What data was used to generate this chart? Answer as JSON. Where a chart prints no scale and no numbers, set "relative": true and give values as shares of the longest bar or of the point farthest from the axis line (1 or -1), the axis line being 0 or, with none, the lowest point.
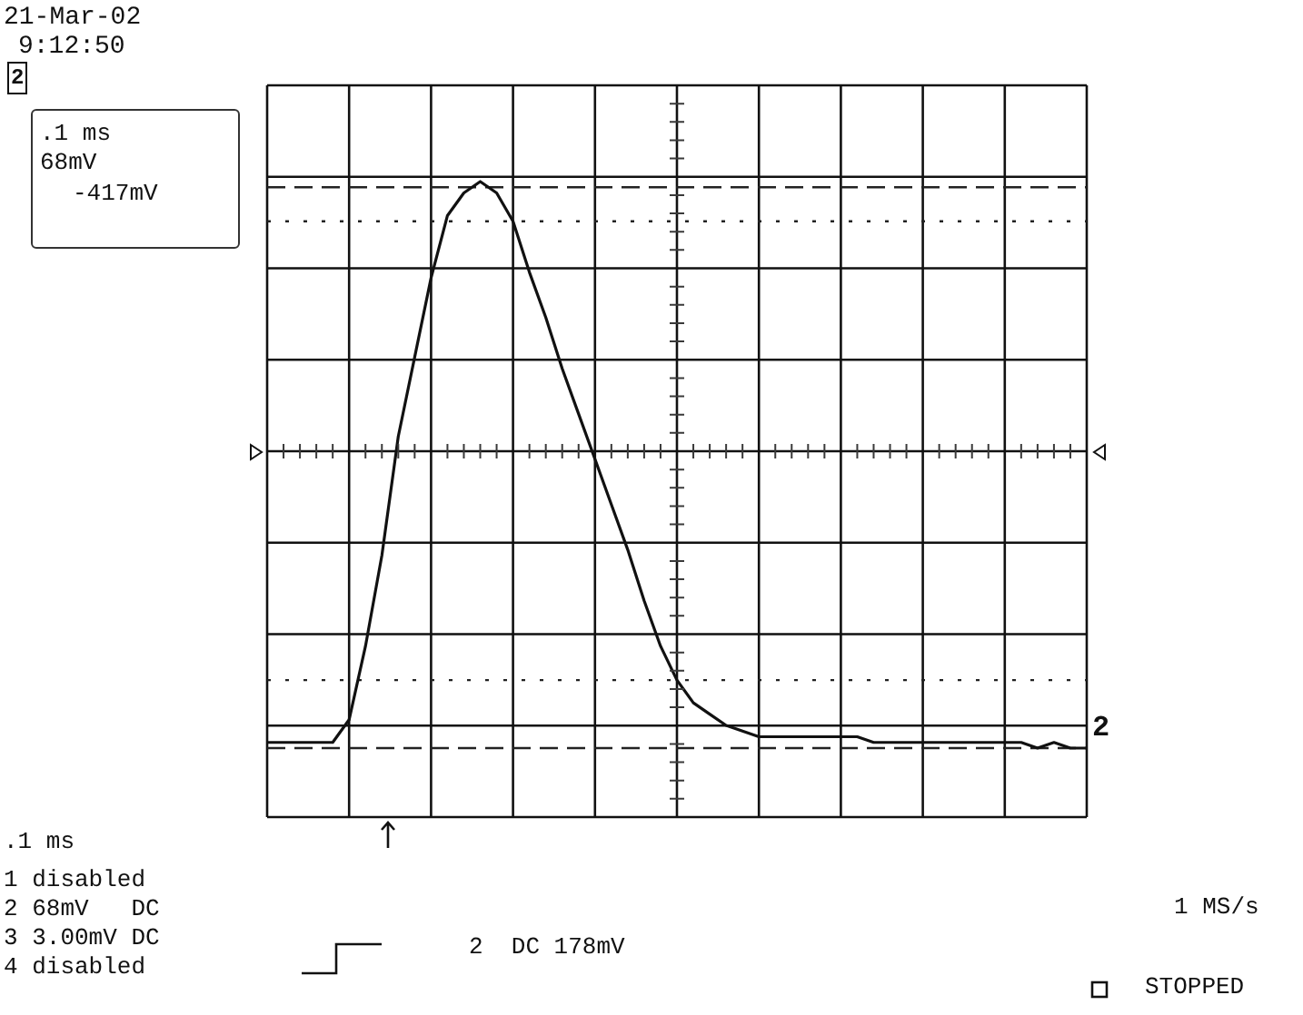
{
  "chart_data": {
    "type": "line",
    "relative": true,
    "grid": true,
    "marker": "none",
    "categories": [
      null,
      null,
      null,
      null,
      null,
      null,
      null,
      null,
      null,
      null,
      null,
      null,
      null,
      null,
      null,
      null,
      null,
      null,
      null,
      null,
      null,
      null,
      null,
      null,
      null,
      null,
      null,
      null,
      null,
      null,
      null,
      null,
      null,
      null,
      null,
      null,
      null,
      null,
      null,
      null,
      null,
      null,
      null,
      null,
      null,
      null,
      null,
      null,
      null,
      null,
      null
    ],
    "series": [
      {
        "color": "#111111",
        "values": [
          0.01,
          0.01,
          0.01,
          0.01,
          0.01,
          0.05,
          0.18,
          0.34,
          0.55,
          0.69,
          0.83,
          0.94,
          0.98,
          1,
          0.98,
          0.93,
          0.84,
          0.76,
          0.67,
          0.59,
          0.51,
          0.43,
          0.35,
          0.26,
          0.18,
          0.12,
          0.08,
          0.06,
          0.04,
          0.03,
          0.02,
          0.02,
          0.02,
          0.02,
          0.02,
          0.02,
          0.02,
          0.01,
          0.01,
          0.01,
          0.01,
          0.01,
          0.01,
          0.01,
          0.01,
          0.01,
          0.01,
          0,
          0.01,
          0,
          0
        ]
      }
    ],
    "ref_lines": [
      {
        "axis": "y",
        "value": 0.99,
        "line_style": "dashed"
      },
      {
        "axis": "y",
        "value": 0.93,
        "line_style": "dotted"
      },
      {
        "axis": "y",
        "value": 0.12,
        "line_style": "dotted"
      },
      {
        "axis": "y",
        "value": 0,
        "line_style": "dashed"
      }
    ],
    "annotations": [
      "21-Mar-02",
      "9:12:50",
      "2",
      ".1 ms",
      "68mV",
      "-417mV",
      ".1 ms",
      "1 disabled",
      "2 68mV   DC",
      "3 3.00mV DC",
      "4 disabled",
      "2  DC 178mV",
      "1 MS/s",
      "STOPPED",
      "2"
    ]
  }
}
